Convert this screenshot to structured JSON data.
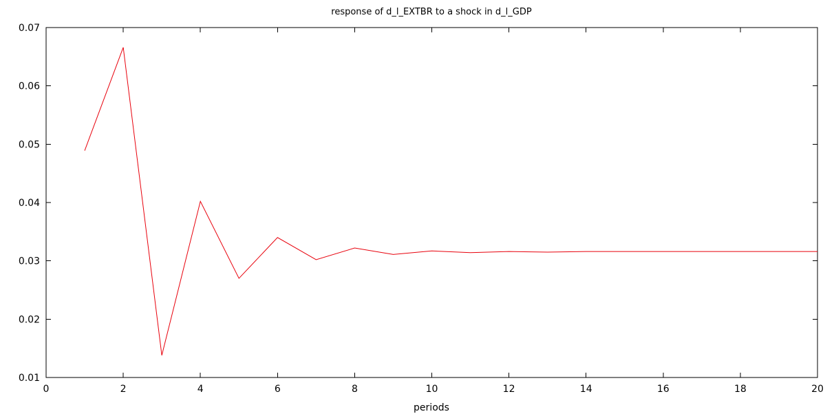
{
  "chart_data": {
    "type": "line",
    "title": "response of d_l_EXTBR to a shock in d_l_GDP",
    "xlabel": "periods",
    "ylabel": "",
    "xlim": [
      0,
      20
    ],
    "ylim": [
      0.01,
      0.07
    ],
    "xticks": [
      0,
      2,
      4,
      6,
      8,
      10,
      12,
      14,
      16,
      18,
      20
    ],
    "yticks": [
      0.01,
      0.02,
      0.03,
      0.04,
      0.05,
      0.06,
      0.07
    ],
    "xtick_labels": [
      "0",
      "2",
      "4",
      "6",
      "8",
      "10",
      "12",
      "14",
      "16",
      "18",
      "20"
    ],
    "ytick_labels": [
      "0.01",
      "0.02",
      "0.03",
      "0.04",
      "0.05",
      "0.06",
      "0.07"
    ],
    "grid": false,
    "series": [
      {
        "color": "#e8000b",
        "x": [
          1,
          2,
          3,
          4,
          5,
          6,
          7,
          8,
          9,
          10,
          11,
          12,
          13,
          14,
          15,
          16,
          17,
          18,
          19,
          20
        ],
        "y": [
          0.0489,
          0.0666,
          0.0138,
          0.0402,
          0.027,
          0.034,
          0.0302,
          0.0322,
          0.0311,
          0.0317,
          0.0314,
          0.0316,
          0.0315,
          0.0316,
          0.0316,
          0.0316,
          0.0316,
          0.0316,
          0.0316,
          0.0316
        ]
      }
    ]
  }
}
